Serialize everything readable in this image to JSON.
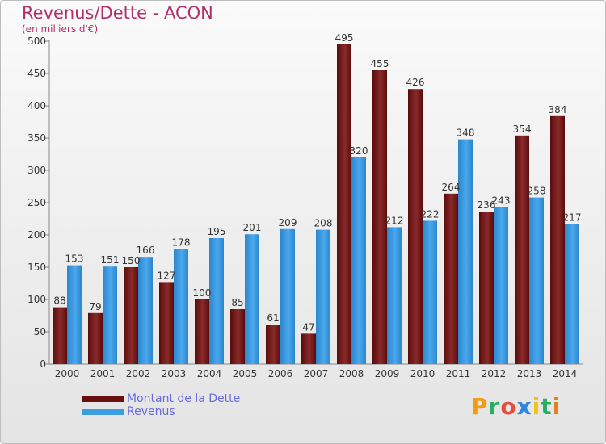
{
  "title": "Revenus/Dette - ACON",
  "subtitle": "(en milliers d'€)",
  "colors": {
    "dette": "#7a1a1a",
    "revenus": "#3d9de2",
    "title": "#b0306a",
    "legend_text": "#6a6adf"
  },
  "legend": {
    "dette_label": "Montant de la Dette",
    "revenus_label": "Revenus"
  },
  "logo": "Proxiti",
  "chart_data": {
    "type": "bar",
    "title": "Revenus/Dette - ACON",
    "subtitle": "(en milliers d'€)",
    "categories": [
      "2000",
      "2001",
      "2002",
      "2003",
      "2004",
      "2005",
      "2006",
      "2007",
      "2008",
      "2009",
      "2010",
      "2011",
      "2012",
      "2013",
      "2014"
    ],
    "series": [
      {
        "name": "Montant de la Dette",
        "values": [
          88,
          79,
          150,
          127,
          100,
          85,
          61,
          47,
          495,
          455,
          426,
          264,
          236,
          354,
          384
        ]
      },
      {
        "name": "Revenus",
        "values": [
          153,
          151,
          166,
          178,
          195,
          201,
          209,
          208,
          320,
          212,
          222,
          348,
          243,
          258,
          217
        ]
      }
    ],
    "ylim": [
      0,
      500
    ],
    "yticks": [
      0,
      50,
      100,
      150,
      200,
      250,
      300,
      350,
      400,
      450,
      500
    ],
    "grid": false,
    "legend_position": "bottom-left"
  }
}
